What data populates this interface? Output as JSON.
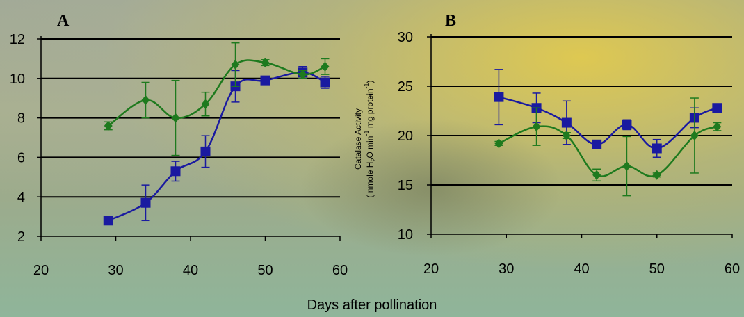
{
  "xlabel": "Days after pollination",
  "chart_data": [
    {
      "type": "line",
      "panel": "A",
      "title": "",
      "xlabel": "Days after pollination",
      "ylabel": "",
      "xlim": [
        20,
        60
      ],
      "ylim": [
        2,
        12
      ],
      "xticks": [
        20,
        30,
        40,
        50,
        60
      ],
      "yticks": [
        2,
        4,
        6,
        8,
        10,
        12
      ],
      "grid": "horizontal",
      "series": [
        {
          "marker": "square",
          "color": "#1a1aa0",
          "x": [
            29,
            34,
            38,
            42,
            46,
            50,
            55,
            58
          ],
          "y": [
            2.8,
            3.7,
            5.3,
            6.3,
            9.6,
            9.9,
            10.3,
            9.8
          ],
          "err": [
            0.15,
            0.9,
            0.5,
            0.8,
            0.8,
            0.2,
            0.3,
            0.3
          ]
        },
        {
          "marker": "diamond",
          "color": "#1e7a1e",
          "x": [
            29,
            34,
            38,
            42,
            46,
            50,
            55,
            58
          ],
          "y": [
            7.6,
            8.9,
            8.0,
            8.7,
            10.7,
            10.8,
            10.2,
            10.6
          ],
          "err": [
            0.2,
            0.9,
            1.9,
            0.6,
            1.1,
            0.15,
            0.2,
            0.4
          ]
        }
      ]
    },
    {
      "type": "line",
      "panel": "B",
      "title": "",
      "xlabel": "Days after pollination",
      "ylabel": "Catalase Activity (nmole H2O2 min-1 mg protein-1)",
      "ylabel_line1": "Catalase Activity",
      "ylabel_line2": "( nmole H",
      "ylabel_sub": "2",
      "ylabel_line2b": "O",
      "ylabel_line2c": " min",
      "ylabel_sup": "-1",
      "ylabel_line2d": " mg protein",
      "ylabel_line2e": ")",
      "xlim": [
        20,
        60
      ],
      "ylim": [
        10,
        30
      ],
      "xticks": [
        20,
        30,
        40,
        50,
        60
      ],
      "yticks": [
        10,
        15,
        20,
        25,
        30
      ],
      "grid": "horizontal",
      "series": [
        {
          "marker": "square",
          "color": "#1a1aa0",
          "x": [
            29,
            34,
            38,
            42,
            46,
            50,
            55,
            58
          ],
          "y": [
            23.9,
            22.8,
            21.3,
            19.1,
            21.1,
            18.7,
            21.8,
            22.8
          ],
          "err": [
            2.8,
            1.5,
            2.2,
            0.4,
            0.5,
            0.9,
            1.0,
            0.4
          ]
        },
        {
          "marker": "diamond",
          "color": "#1e7a1e",
          "x": [
            29,
            34,
            38,
            42,
            46,
            50,
            55,
            58
          ],
          "y": [
            19.2,
            20.9,
            20.0,
            16.0,
            16.9,
            16.0,
            20.0,
            20.9
          ],
          "err": [
            0.2,
            1.9,
            0.3,
            0.6,
            3.0,
            0.2,
            3.8,
            0.4
          ]
        }
      ]
    }
  ]
}
